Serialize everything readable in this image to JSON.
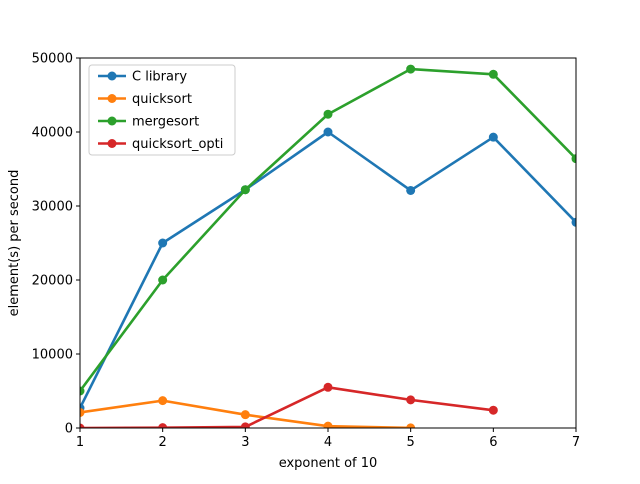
{
  "chart_data": {
    "type": "line",
    "title": "",
    "xlabel": "exponent of 10",
    "ylabel": "element(s) per second",
    "xlim": [
      1,
      7
    ],
    "ylim": [
      0,
      50000
    ],
    "x_ticks": [
      1,
      2,
      3,
      4,
      5,
      6,
      7
    ],
    "y_ticks": [
      0,
      10000,
      20000,
      30000,
      40000,
      50000
    ],
    "x_tick_labels": [
      "1",
      "2",
      "3",
      "4",
      "5",
      "6",
      "7"
    ],
    "y_tick_labels": [
      "0",
      "10000",
      "20000",
      "30000",
      "40000",
      "50000"
    ],
    "grid": false,
    "legend_position": "top-left",
    "markers": "circle",
    "series": [
      {
        "name": "C library",
        "color": "#1f77b4",
        "x": [
          1,
          2,
          3,
          4,
          5,
          6,
          7
        ],
        "values": [
          2700,
          25000,
          32200,
          40000,
          32100,
          39300,
          27800
        ]
      },
      {
        "name": "quicksort",
        "color": "#ff7f0e",
        "x": [
          1,
          2,
          3,
          4,
          5
        ],
        "values": [
          2100,
          3700,
          1800,
          250,
          10
        ]
      },
      {
        "name": "mergesort",
        "color": "#2ca02c",
        "x": [
          1,
          2,
          3,
          4,
          5,
          6,
          7
        ],
        "values": [
          5000,
          20000,
          32200,
          42400,
          48500,
          47800,
          36400
        ]
      },
      {
        "name": "quicksort_opti",
        "color": "#d62728",
        "x": [
          1,
          2,
          3,
          4,
          5,
          6
        ],
        "values": [
          0,
          50,
          150,
          5500,
          3800,
          2400
        ]
      }
    ]
  }
}
